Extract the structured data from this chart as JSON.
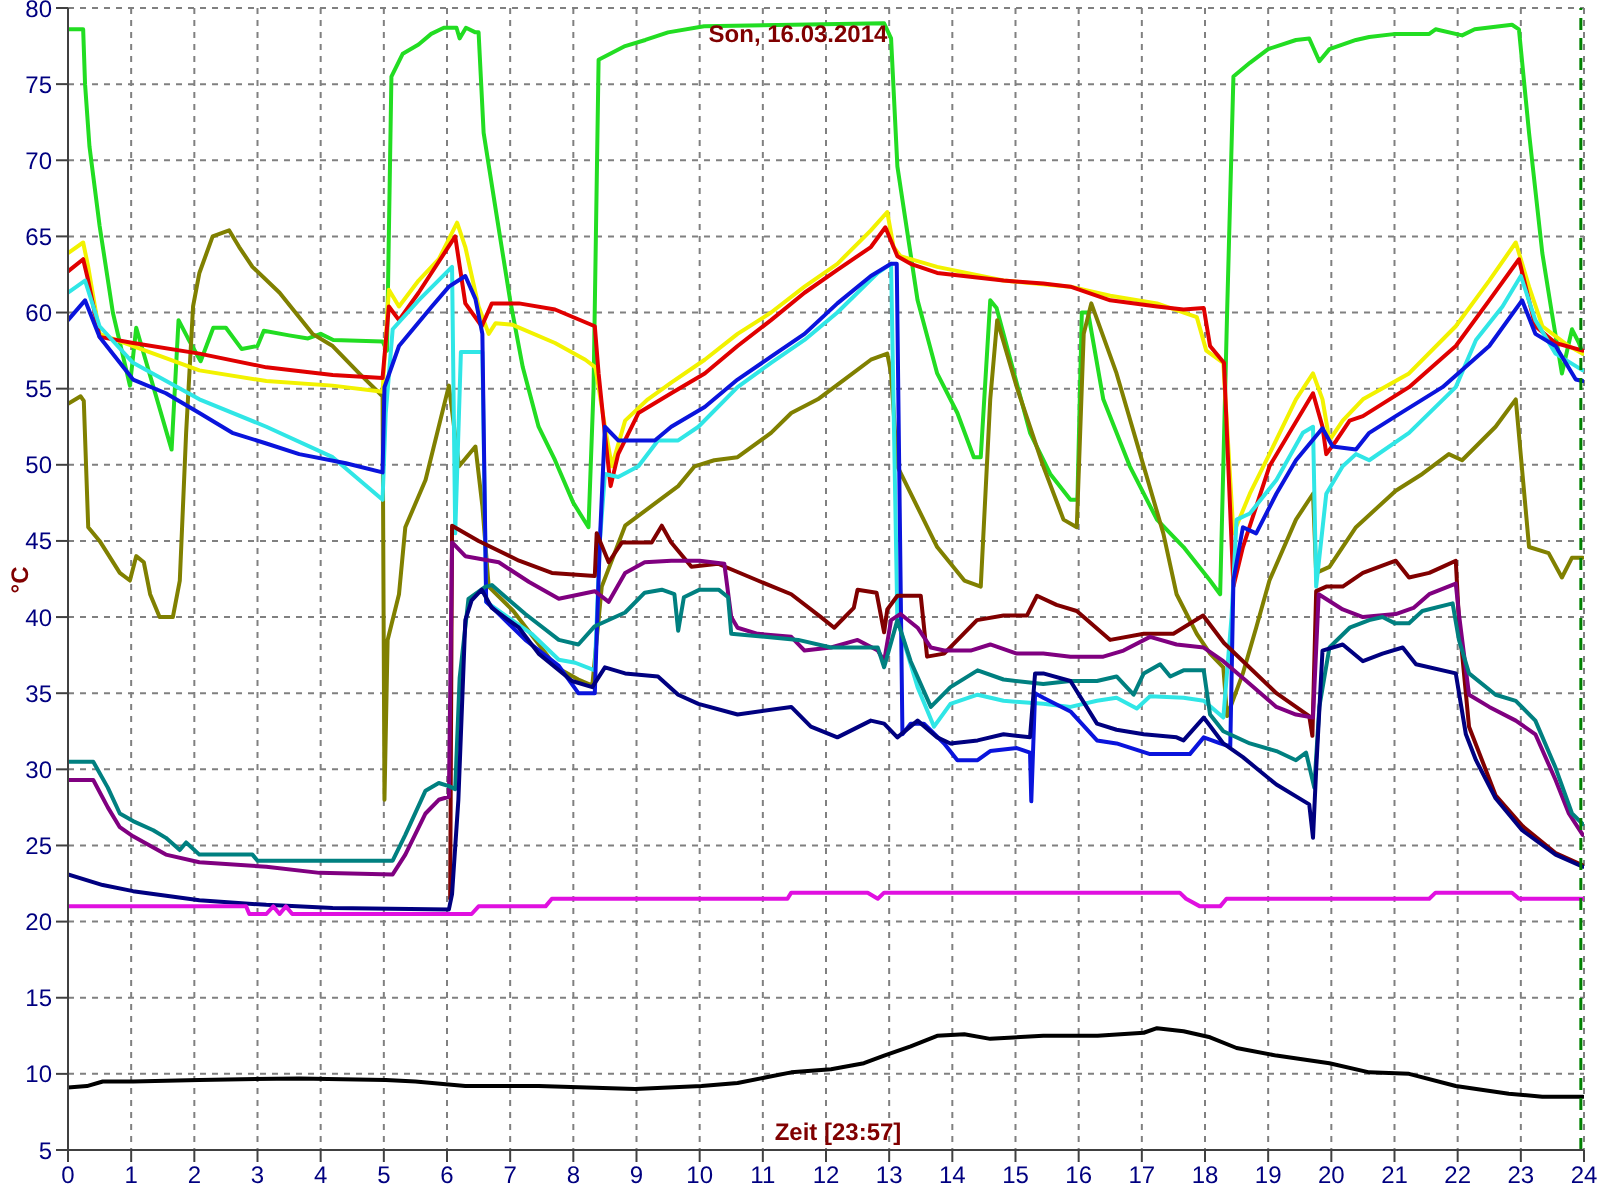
{
  "chart_data": {
    "type": "line",
    "title": "Son, 16.03.2014",
    "xlabel": "Zeit [23:57]",
    "ylabel": "°C",
    "xlim": [
      0,
      24
    ],
    "xticks": [
      0,
      1,
      2,
      3,
      4,
      5,
      6,
      7,
      8,
      9,
      10,
      11,
      12,
      13,
      14,
      15,
      16,
      17,
      18,
      19,
      20,
      21,
      22,
      23,
      24
    ],
    "ylim": [
      5,
      80
    ],
    "yticks": [
      5,
      10,
      15,
      20,
      25,
      30,
      35,
      40,
      45,
      50,
      55,
      60,
      65,
      70,
      75,
      80
    ],
    "grid": true,
    "marker": "none",
    "ref_lines": [
      {
        "axis": "x",
        "value": 23.95,
        "color": "#008000",
        "line_style": "dashed"
      }
    ],
    "series": [
      {
        "color": "#22dd22",
        "x": [
          0,
          0.24,
          0.27,
          0.34,
          0.5,
          0.71,
          0.98,
          1.08,
          1.64,
          1.75,
          1.9,
          2.1,
          2.3,
          2.5,
          2.75,
          3.0,
          3.1,
          3.5,
          3.8,
          4.0,
          4.2,
          4.98,
          5.05,
          5.12,
          5.3,
          5.55,
          5.75,
          5.95,
          6.15,
          6.2,
          6.3,
          6.45,
          6.5,
          6.58,
          6.8,
          7.0,
          7.2,
          7.45,
          7.71,
          8.0,
          8.24,
          8.32,
          8.4,
          8.82,
          9.14,
          9.5,
          10.07,
          12.92,
          13.03,
          13.13,
          13.45,
          13.76,
          14.08,
          14.34,
          14.45,
          14.6,
          14.7,
          14.92,
          15.23,
          15.55,
          15.87,
          15.98,
          16.05,
          16.15,
          16.39,
          16.81,
          17.24,
          17.66,
          18.08,
          18.24,
          18.35,
          18.45,
          18.71,
          19.0,
          19.44,
          19.65,
          19.81,
          19.97,
          20.39,
          20.6,
          21.02,
          21.55,
          21.65,
          22.07,
          22.27,
          22.86,
          22.97,
          23.13,
          23.34,
          23.49,
          23.65,
          23.81,
          23.92,
          23.98
        ],
        "values": [
          78.6,
          78.6,
          75,
          70.9,
          65.7,
          60,
          55.2,
          59,
          51,
          59.5,
          58.3,
          56.8,
          59,
          59,
          57.6,
          57.8,
          58.8,
          58.5,
          58.3,
          58.6,
          58.2,
          58.1,
          57.5,
          75.5,
          77,
          77.6,
          78.3,
          78.7,
          78.7,
          78,
          78.7,
          78.4,
          78.4,
          71.8,
          66,
          60.8,
          56.4,
          52.5,
          50.3,
          47.5,
          45.9,
          55,
          76.6,
          77.5,
          77.9,
          78.4,
          78.8,
          79,
          78,
          69.6,
          60.8,
          56,
          53.4,
          50.5,
          50.5,
          60.8,
          60.3,
          56.9,
          52.1,
          49.4,
          47.7,
          47.7,
          60,
          60,
          54.3,
          49.9,
          46.4,
          44.6,
          42.4,
          41.5,
          60,
          75.5,
          76.4,
          77.3,
          77.9,
          78,
          76.5,
          77.3,
          77.9,
          78.1,
          78.3,
          78.3,
          78.6,
          78.2,
          78.6,
          78.9,
          78.6,
          71.8,
          63.9,
          60,
          56,
          58.9,
          58,
          57.3
        ]
      },
      {
        "color": "#808000",
        "x": [
          0,
          0.2,
          0.25,
          0.32,
          0.5,
          0.82,
          0.98,
          1.08,
          1.2,
          1.3,
          1.45,
          1.66,
          1.77,
          1.87,
          1.98,
          2.08,
          2.29,
          2.55,
          2.71,
          2.92,
          3.35,
          3.87,
          4.19,
          4.61,
          4.98,
          5.01,
          5.06,
          5.24,
          5.34,
          5.66,
          6.03,
          6.19,
          6.45,
          6.56,
          6.66,
          7.05,
          7.73,
          8.08,
          8.3,
          8.45,
          8.82,
          9.24,
          9.66,
          9.92,
          10.23,
          10.6,
          11.13,
          11.45,
          11.87,
          12.29,
          12.71,
          12.97,
          13.03,
          13.13,
          13.45,
          13.76,
          14.19,
          14.45,
          14.6,
          14.71,
          15.02,
          15.44,
          15.76,
          15.97,
          16.08,
          16.2,
          16.6,
          17.03,
          17.34,
          17.55,
          17.87,
          18.08,
          18.29,
          18.35,
          18.6,
          18.81,
          19.02,
          19.44,
          19.71,
          19.76,
          19.97,
          20.39,
          21.02,
          21.44,
          21.86,
          22.07,
          22.6,
          22.92,
          23.13,
          23.44,
          23.65,
          23.81,
          23.98
        ],
        "values": [
          54,
          54.5,
          54.2,
          45.9,
          45,
          42.9,
          42.4,
          44,
          43.6,
          41.5,
          40,
          40,
          42.4,
          52.1,
          60.4,
          62.6,
          65,
          65.4,
          64.3,
          63,
          61.3,
          58.6,
          57.8,
          56,
          54.5,
          28,
          38.5,
          41.5,
          45.9,
          49,
          55.2,
          49.9,
          51.2,
          47.3,
          42,
          40.4,
          36.7,
          35.9,
          35.5,
          42,
          46,
          47.3,
          48.6,
          49.9,
          50.3,
          50.5,
          52.1,
          53.4,
          54.3,
          55.6,
          56.9,
          57.3,
          56,
          49.9,
          47.2,
          44.6,
          42.4,
          42,
          54.3,
          59.5,
          55.1,
          49.9,
          46.4,
          45.9,
          58.6,
          60.6,
          56,
          49.9,
          45.5,
          41.5,
          38.9,
          37.6,
          36.7,
          33.5,
          36.3,
          39.3,
          42.4,
          46.4,
          48.1,
          42.9,
          43.3,
          45.9,
          48.3,
          49.4,
          50.7,
          50.3,
          52.5,
          54.3,
          44.6,
          44.2,
          42.6,
          43.9,
          43.9
        ]
      },
      {
        "color": "#f2f200",
        "x": [
          0,
          0.24,
          0.32,
          0.5,
          1.03,
          2.08,
          3.14,
          4.19,
          4.98,
          5.08,
          5.24,
          5.55,
          5.87,
          6.16,
          6.29,
          6.5,
          6.66,
          6.77,
          7.03,
          7.71,
          8.19,
          8.35,
          8.5,
          8.61,
          8.82,
          9.18,
          9.55,
          10.08,
          10.6,
          11.13,
          11.66,
          12.18,
          12.71,
          12.97,
          13.07,
          13.18,
          13.76,
          14.81,
          15.87,
          16.5,
          17.24,
          17.87,
          18.02,
          18.29,
          18.45,
          18.71,
          19.02,
          19.44,
          19.71,
          19.86,
          19.97,
          20.18,
          20.5,
          21.23,
          21.97,
          22.5,
          22.92,
          23.13,
          23.34,
          23.76,
          23.98
        ],
        "values": [
          63.9,
          64.6,
          63,
          58.6,
          57.8,
          56.2,
          55.5,
          55.2,
          54.8,
          61.5,
          60.4,
          62.1,
          63.5,
          65.9,
          64.3,
          60.4,
          58.6,
          59.3,
          59.2,
          58,
          56.9,
          56.4,
          52.5,
          49.9,
          52.9,
          54.3,
          55.4,
          56.9,
          58.6,
          60,
          61.7,
          63.2,
          65.4,
          66.6,
          64.3,
          63.7,
          63,
          62.1,
          61.7,
          61.1,
          60.6,
          59.7,
          57.5,
          56.7,
          45.5,
          48.1,
          50.7,
          54.3,
          56,
          54.3,
          51.6,
          52.9,
          54.3,
          56,
          59.1,
          62.1,
          64.6,
          61.7,
          59.1,
          57.8,
          57.3
        ]
      },
      {
        "color": "#e00000",
        "x": [
          0,
          0.24,
          0.32,
          0.5,
          1.03,
          2.08,
          3.14,
          4.19,
          4.98,
          5.08,
          5.24,
          5.55,
          6.13,
          6.29,
          6.55,
          6.71,
          7.14,
          7.71,
          8.34,
          8.4,
          8.5,
          8.59,
          8.71,
          9.03,
          9.55,
          10.08,
          10.6,
          11.13,
          11.66,
          12.18,
          12.71,
          12.94,
          13.13,
          13.34,
          13.76,
          14.81,
          15.44,
          15.87,
          16.5,
          17.24,
          17.66,
          17.98,
          18.08,
          18.3,
          18.45,
          18.6,
          19.02,
          19.71,
          19.86,
          19.92,
          20.08,
          20.29,
          20.5,
          21.23,
          21.97,
          22.5,
          22.97,
          23.23,
          23.55,
          23.98
        ],
        "values": [
          62.7,
          63.5,
          62.1,
          58.4,
          58,
          57.3,
          56.4,
          55.9,
          55.7,
          60.4,
          59.5,
          61.3,
          65,
          60.6,
          59.1,
          60.6,
          60.6,
          60.2,
          59.1,
          56,
          52,
          48.6,
          50.7,
          53.4,
          54.7,
          56,
          57.8,
          59.5,
          61.3,
          62.8,
          64.3,
          65.6,
          63.7,
          63.2,
          62.6,
          62.1,
          61.9,
          61.7,
          60.8,
          60.4,
          60.2,
          60.3,
          57.8,
          56.7,
          42,
          44.6,
          49.9,
          54.7,
          52.5,
          50.7,
          51.6,
          52.9,
          53.2,
          55.1,
          57.8,
          60.8,
          63.5,
          59.1,
          58,
          57.5
        ]
      },
      {
        "color": "#30e6e6",
        "x": [
          0,
          0.27,
          0.5,
          1.03,
          2.08,
          3.14,
          4.19,
          4.98,
          5.03,
          5.14,
          5.55,
          6.08,
          6.13,
          6.22,
          6.56,
          6.62,
          7.34,
          7.77,
          8.03,
          8.34,
          8.42,
          8.5,
          8.71,
          9.03,
          9.34,
          9.66,
          9.98,
          10.6,
          11.13,
          11.66,
          12.18,
          12.82,
          13.03,
          13.13,
          13.45,
          13.71,
          13.97,
          14.4,
          14.81,
          15.44,
          15.87,
          16.29,
          16.6,
          16.92,
          17.13,
          17.66,
          17.98,
          18.29,
          18.42,
          18.5,
          18.71,
          19.13,
          19.55,
          19.71,
          19.76,
          19.92,
          20.18,
          20.39,
          20.6,
          21.23,
          21.97,
          22.29,
          22.71,
          23.0,
          23.23,
          23.55,
          23.98
        ],
        "values": [
          61.3,
          62.1,
          59.1,
          56.7,
          54.3,
          52.5,
          50.5,
          47.7,
          53.4,
          58.9,
          60.8,
          63,
          45.5,
          57.4,
          57.4,
          41,
          38.9,
          37.2,
          37,
          36.5,
          45,
          49.4,
          49.2,
          49.9,
          51.6,
          51.6,
          52.5,
          55.1,
          56.7,
          58.2,
          60,
          62.6,
          63.2,
          39.8,
          35.4,
          32.8,
          34.3,
          34.9,
          34.5,
          34.3,
          34.1,
          34.5,
          34.7,
          34,
          34.8,
          34.7,
          34.5,
          33.4,
          40,
          46.4,
          46.8,
          49,
          52.1,
          52.5,
          42,
          48.1,
          49.9,
          50.7,
          50.3,
          52.1,
          55.1,
          58.2,
          60.4,
          62.4,
          59.5,
          57.3,
          56.2
        ]
      },
      {
        "color": "#0a14dc",
        "x": [
          0,
          0.27,
          0.5,
          1.03,
          1.55,
          2.08,
          2.6,
          3.14,
          3.66,
          4.4,
          4.98,
          5.01,
          5.24,
          5.76,
          6.03,
          6.29,
          6.45,
          6.56,
          6.62,
          6.75,
          7.24,
          7.77,
          8.08,
          8.34,
          8.42,
          8.5,
          8.71,
          9.29,
          9.55,
          10.08,
          10.6,
          11.13,
          11.66,
          12.18,
          12.71,
          13.03,
          13.12,
          13.21,
          13.34,
          13.55,
          13.87,
          14.08,
          14.4,
          14.6,
          15.02,
          15.23,
          15.25,
          15.31,
          15.44,
          15.87,
          16.29,
          16.6,
          17.13,
          17.76,
          17.98,
          18.24,
          18.4,
          18.45,
          18.6,
          18.81,
          19.13,
          19.44,
          19.86,
          20.02,
          20.39,
          20.6,
          21.02,
          21.76,
          22.5,
          23.02,
          23.23,
          23.55,
          23.87,
          23.98
        ],
        "values": [
          59.5,
          60.8,
          58.4,
          55.6,
          54.7,
          53.4,
          52.1,
          51.4,
          50.7,
          50.1,
          49.5,
          55.1,
          57.8,
          60.4,
          61.7,
          62.4,
          60.9,
          58.6,
          41,
          40.5,
          38.5,
          36.8,
          35,
          35,
          45,
          52.5,
          51.6,
          51.6,
          52.5,
          53.8,
          55.6,
          57.1,
          58.6,
          60.6,
          62.4,
          63.2,
          63.2,
          32.3,
          33,
          33,
          31.7,
          30.6,
          30.6,
          31.2,
          31.4,
          31.1,
          27.9,
          35,
          34.7,
          33.8,
          31.9,
          31.7,
          31,
          31,
          32.1,
          31.7,
          31.5,
          42.4,
          45.9,
          45.5,
          48.1,
          50.3,
          52.4,
          51.2,
          51,
          52.1,
          53.2,
          55.1,
          57.8,
          60.8,
          58.6,
          57.8,
          55.6,
          55.5
        ]
      },
      {
        "color": "#800000",
        "x": [
          6.05,
          6.08,
          6.5,
          7.14,
          7.66,
          8.34,
          8.37,
          8.56,
          8.77,
          9.24,
          9.4,
          9.55,
          9.87,
          10.29,
          10.92,
          11.45,
          11.92,
          12.13,
          12.44,
          12.5,
          12.8,
          12.92,
          12.97,
          13.13,
          13.5,
          13.6,
          13.87,
          14.39,
          14.81,
          15.18,
          15.34,
          15.65,
          15.97,
          16.5,
          17.03,
          17.5,
          17.97,
          18.3,
          19.13,
          19.65,
          19.7,
          19.76,
          19.92,
          20.18,
          20.5,
          21.02,
          21.23,
          21.55,
          21.76,
          21.97,
          22.02,
          22.18,
          22.6,
          23.02,
          23.55,
          23.98
        ],
        "values": [
          21.5,
          46,
          45,
          43.7,
          42.9,
          42.7,
          45.5,
          43.6,
          44.9,
          44.9,
          46,
          44.9,
          43.3,
          43.5,
          42.4,
          41.5,
          40,
          39.3,
          40.6,
          41.8,
          41.6,
          39,
          40.5,
          41.4,
          41.4,
          37.4,
          37.6,
          39.8,
          40.1,
          40.1,
          41.4,
          40.8,
          40.4,
          38.5,
          38.9,
          38.9,
          40.1,
          38.3,
          35,
          33.5,
          32.2,
          41.7,
          42,
          42,
          42.9,
          43.7,
          42.6,
          42.9,
          43.3,
          43.7,
          39.8,
          32.8,
          28.3,
          26.3,
          24.5,
          23.7
        ]
      },
      {
        "color": "#800080",
        "x": [
          0,
          0.4,
          0.63,
          0.82,
          1.03,
          1.55,
          2.08,
          3.14,
          3.98,
          5.14,
          5.34,
          5.66,
          5.87,
          6.03,
          6.08,
          6.29,
          6.82,
          7.3,
          7.77,
          8.34,
          8.56,
          8.82,
          9.13,
          9.55,
          10.0,
          10.39,
          10.5,
          10.6,
          10.92,
          11.45,
          11.66,
          12.08,
          12.5,
          12.82,
          12.92,
          13.03,
          13.18,
          13.45,
          13.66,
          13.87,
          14.29,
          14.6,
          15.02,
          15.44,
          15.87,
          16.39,
          16.71,
          17.13,
          17.55,
          17.98,
          18.29,
          18.71,
          19.13,
          19.44,
          19.71,
          19.8,
          20.18,
          20.5,
          21.02,
          21.3,
          21.55,
          21.97,
          22.02,
          22.18,
          22.5,
          22.92,
          23.23,
          23.55,
          23.76,
          23.98
        ],
        "values": [
          29.3,
          29.3,
          27.5,
          26.2,
          25.6,
          24.4,
          23.9,
          23.6,
          23.2,
          23.1,
          24.4,
          27.1,
          28,
          28.2,
          44.9,
          44,
          43.6,
          42.3,
          41.2,
          41.7,
          41,
          42.9,
          43.6,
          43.7,
          43.7,
          43.5,
          40,
          39.3,
          38.9,
          38.7,
          37.8,
          38,
          38.5,
          37.8,
          37.1,
          39.8,
          40.2,
          39.3,
          38,
          37.8,
          37.8,
          38.2,
          37.6,
          37.6,
          37.4,
          37.4,
          37.8,
          38.7,
          38.2,
          38,
          37.1,
          35.6,
          34.1,
          33.6,
          33.4,
          41.5,
          40.5,
          40,
          40.2,
          40.6,
          41.5,
          42.2,
          40.2,
          34.9,
          34.1,
          33.2,
          32.3,
          29.3,
          27.1,
          25.7
        ]
      },
      {
        "color": "#008080",
        "x": [
          0,
          0.4,
          0.63,
          0.82,
          1.03,
          1.35,
          1.55,
          1.77,
          1.87,
          2.08,
          2.92,
          3.0,
          5.14,
          5.34,
          5.66,
          5.87,
          6.03,
          6.13,
          6.2,
          6.34,
          6.61,
          6.71,
          7.24,
          7.77,
          8.08,
          8.34,
          8.82,
          9.13,
          9.4,
          9.6,
          9.66,
          9.75,
          10.0,
          10.3,
          10.45,
          10.5,
          11.03,
          11.56,
          12.08,
          12.82,
          12.92,
          13.13,
          13.34,
          13.66,
          13.97,
          14.4,
          14.81,
          15.44,
          15.87,
          16.29,
          16.6,
          16.87,
          17.03,
          17.29,
          17.45,
          17.66,
          17.98,
          18.08,
          18.29,
          18.71,
          19.13,
          19.44,
          19.6,
          19.73,
          19.81,
          19.97,
          20.29,
          20.6,
          20.81,
          21.0,
          21.23,
          21.44,
          21.92,
          22.02,
          22.18,
          22.6,
          22.92,
          23.23,
          23.55,
          23.81,
          23.98
        ],
        "values": [
          30.5,
          30.5,
          28.8,
          27.1,
          26.6,
          26,
          25.5,
          24.7,
          25.2,
          24.4,
          24.4,
          24,
          24,
          25.7,
          28.6,
          29.1,
          28.9,
          28.7,
          36,
          41.2,
          42,
          42.1,
          40.2,
          38.5,
          38.2,
          39.4,
          40.3,
          41.6,
          41.8,
          41.5,
          39.1,
          41.3,
          41.8,
          41.8,
          41.3,
          38.9,
          38.7,
          38.5,
          38,
          38,
          36.7,
          39.8,
          37.1,
          34.1,
          35.4,
          36.5,
          35.9,
          35.6,
          35.8,
          35.8,
          36.1,
          34.9,
          36.3,
          36.9,
          36.1,
          36.5,
          36.5,
          33.6,
          32.5,
          31.7,
          31.2,
          30.6,
          31.1,
          28.8,
          34.1,
          38,
          39.3,
          39.8,
          40,
          39.6,
          39.6,
          40.4,
          40.9,
          38.5,
          36.3,
          34.9,
          34.5,
          33.2,
          30.1,
          27.1,
          26.4
        ]
      },
      {
        "color": "#000080",
        "x": [
          0,
          0.55,
          1.03,
          2.08,
          3.14,
          4.19,
          6.03,
          6.08,
          6.18,
          6.29,
          6.39,
          6.55,
          6.71,
          7.14,
          7.45,
          7.98,
          8.3,
          8.5,
          8.82,
          9.34,
          9.66,
          9.98,
          10.6,
          11.45,
          11.76,
          12.18,
          12.71,
          12.92,
          13.13,
          13.45,
          13.76,
          13.97,
          14.4,
          14.81,
          15.23,
          15.31,
          15.44,
          15.87,
          16.29,
          16.6,
          17.03,
          17.55,
          17.66,
          17.98,
          18.29,
          18.6,
          19.13,
          19.65,
          19.71,
          19.76,
          19.86,
          20.18,
          20.5,
          20.81,
          21.13,
          21.34,
          21.97,
          22.13,
          22.29,
          22.6,
          23.02,
          23.55,
          23.98
        ],
        "values": [
          23.1,
          22.4,
          22,
          21.4,
          21.1,
          20.9,
          20.8,
          21.8,
          28,
          39.8,
          41.1,
          41.8,
          40.6,
          39.3,
          37.6,
          35.8,
          35.4,
          36.7,
          36.3,
          36.1,
          34.9,
          34.3,
          33.6,
          34.1,
          32.8,
          32.1,
          33.2,
          33,
          32.1,
          33.2,
          32.1,
          31.7,
          31.9,
          32.3,
          32.1,
          36.3,
          36.3,
          35.8,
          33,
          32.6,
          32.3,
          32.1,
          31.9,
          33.4,
          31.7,
          30.8,
          29,
          27.7,
          25.5,
          30,
          37.8,
          38.2,
          37.1,
          37.6,
          38,
          36.9,
          36.3,
          32.3,
          30.6,
          28.1,
          26,
          24.4,
          23.6
        ]
      },
      {
        "color": "#e010e0",
        "x": [
          0,
          2.82,
          2.87,
          3.14,
          3.25,
          3.35,
          3.45,
          3.55,
          6.39,
          6.5,
          7.56,
          7.66,
          11.39,
          11.45,
          12.66,
          12.82,
          12.92,
          17.6,
          17.7,
          17.92,
          18.24,
          18.34,
          21.55,
          21.65,
          22.86,
          22.97,
          23.98
        ],
        "values": [
          21,
          21,
          20.5,
          20.5,
          21,
          20.5,
          21,
          20.5,
          20.5,
          21,
          21,
          21.5,
          21.5,
          21.9,
          21.9,
          21.5,
          21.9,
          21.9,
          21.5,
          21,
          21,
          21.5,
          21.5,
          21.9,
          21.9,
          21.5,
          21.5
        ]
      },
      {
        "color": "#000000",
        "x": [
          0,
          0.3,
          0.55,
          1.03,
          2.08,
          3.66,
          5.03,
          5.5,
          6.29,
          7.45,
          8.98,
          10.03,
          10.6,
          11.45,
          12.08,
          12.6,
          12.92,
          13.34,
          13.76,
          14.19,
          14.6,
          15.44,
          16.3,
          17.03,
          17.24,
          17.66,
          18.08,
          18.5,
          19.13,
          19.97,
          20.6,
          21.23,
          21.97,
          22.81,
          23.34,
          23.98
        ],
        "values": [
          9.1,
          9.2,
          9.5,
          9.5,
          9.6,
          9.7,
          9.6,
          9.5,
          9.2,
          9.2,
          9,
          9.2,
          9.4,
          10.1,
          10.3,
          10.7,
          11.2,
          11.8,
          12.5,
          12.6,
          12.3,
          12.5,
          12.5,
          12.7,
          13,
          12.8,
          12.4,
          11.7,
          11.2,
          10.7,
          10.1,
          10,
          9.2,
          8.7,
          8.5,
          8.5
        ]
      }
    ]
  }
}
